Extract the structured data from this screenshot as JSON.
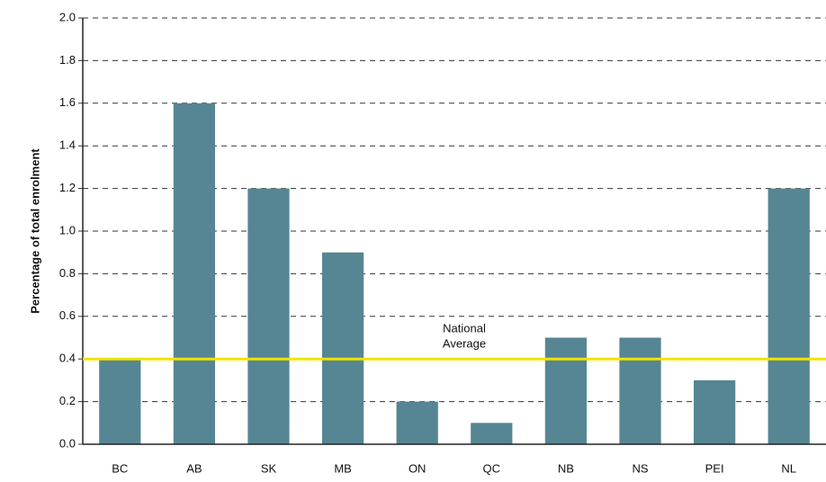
{
  "chart_data": {
    "type": "bar",
    "y_axis_label": "Percentage of total enrolment",
    "categories": [
      "BC",
      "AB",
      "SK",
      "MB",
      "ON",
      "QC",
      "NB",
      "NS",
      "PEI",
      "NL"
    ],
    "values": [
      0.4,
      1.6,
      1.2,
      0.9,
      0.2,
      0.1,
      0.5,
      0.5,
      0.3,
      1.2
    ],
    "color": "#568693",
    "ylim": [
      0,
      2
    ],
    "yticks": [
      {
        "value": 0,
        "label": "0.0"
      },
      0.2,
      0.4,
      0.6,
      0.8,
      {
        "value": 1,
        "label": "1.0"
      },
      1.2,
      1.4,
      1.6,
      1.8,
      {
        "value": 2,
        "label": "2.0"
      }
    ],
    "grid": true,
    "reference_line": {
      "value": 0.4,
      "label_lines": [
        "National",
        "Average"
      ],
      "color": "#f2e400"
    }
  }
}
